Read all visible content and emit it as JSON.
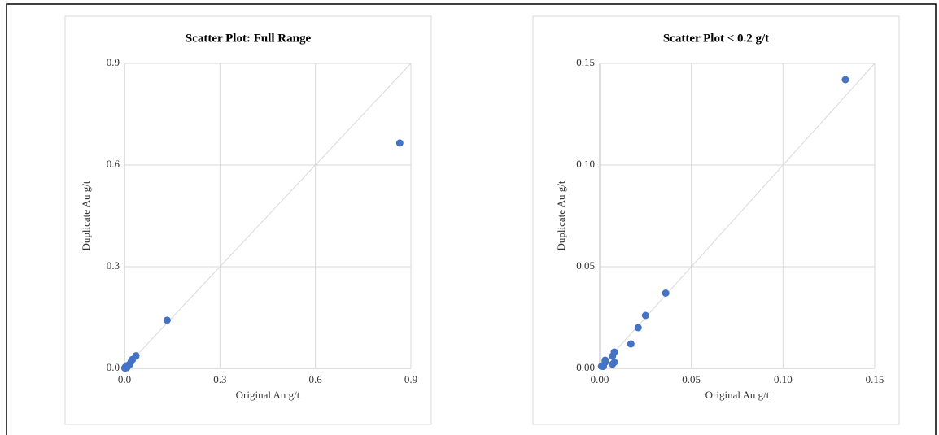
{
  "chart_data": [
    {
      "type": "scatter",
      "title": "Scatter Plot: Full Range",
      "x_label": "Original Au g/t",
      "y_label": "Duplicate Au g/t",
      "x": [
        0.865,
        0.134,
        0.036,
        0.025,
        0.021,
        0.017,
        0.008,
        0.007,
        0.008,
        0.007,
        0.003,
        0.003,
        0.002,
        0.001
      ],
      "values": [
        0.665,
        0.142,
        0.037,
        0.026,
        0.02,
        0.012,
        0.008,
        0.006,
        0.003,
        0.002,
        0.004,
        0.003,
        0.001,
        0.001
      ],
      "color": "#4472c4",
      "xlim": [
        0,
        0.9
      ],
      "ylim": [
        0,
        0.9
      ],
      "xticks": [
        {
          "value": 0,
          "label": "0.0"
        },
        0.3,
        0.6,
        0.9
      ],
      "yticks": [
        {
          "value": 0,
          "label": "0.0"
        },
        0.3,
        0.6,
        0.9
      ],
      "grid": true
    },
    {
      "type": "scatter",
      "title": "Scatter Plot < 0.2 g/t",
      "x_label": "Original Au g/t",
      "y_label": "Duplicate Au g/t",
      "x": [
        0.134,
        0.036,
        0.025,
        0.021,
        0.017,
        0.008,
        0.007,
        0.008,
        0.007,
        0.003,
        0.003,
        0.002,
        0.001
      ],
      "values": [
        0.142,
        0.037,
        0.026,
        0.02,
        0.012,
        0.008,
        0.006,
        0.003,
        0.002,
        0.004,
        0.003,
        0.001,
        0.001
      ],
      "color": "#4472c4",
      "xlim": [
        0,
        0.15
      ],
      "ylim": [
        0,
        0.15
      ],
      "xticks": [
        {
          "value": 0,
          "label": "0.00"
        },
        {
          "value": 0.05,
          "label": "0.05"
        },
        {
          "value": 0.1,
          "label": "0.10"
        },
        {
          "value": 0.15,
          "label": "0.15"
        }
      ],
      "yticks": [
        {
          "value": 0,
          "label": "0.00"
        },
        {
          "value": 0.05,
          "label": "0.05"
        },
        {
          "value": 0.1,
          "label": "0.10"
        },
        {
          "value": 0.15,
          "label": "0.15"
        }
      ],
      "grid": true
    }
  ]
}
